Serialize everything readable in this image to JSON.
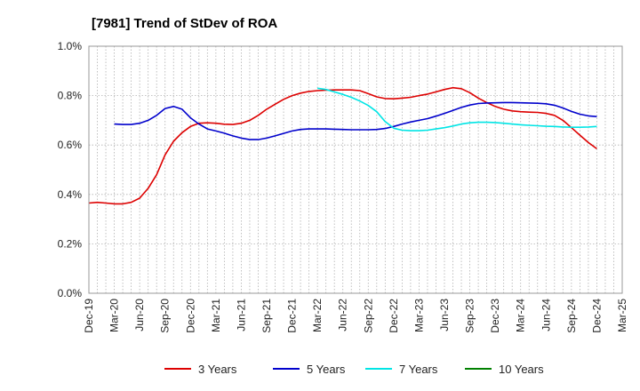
{
  "chart_data": {
    "type": "line",
    "title": "[7981]  Trend of StDev of ROA",
    "xlabel": "",
    "ylabel": "",
    "ylim": [
      0,
      1.0
    ],
    "y_ticks": [
      "0.0%",
      "0.2%",
      "0.4%",
      "0.6%",
      "0.8%",
      "1.0%"
    ],
    "x_ticks": [
      "Dec-19",
      "Mar-20",
      "Jun-20",
      "Sep-20",
      "Dec-20",
      "Mar-21",
      "Jun-21",
      "Sep-21",
      "Dec-21",
      "Mar-22",
      "Jun-22",
      "Sep-22",
      "Dec-22",
      "Mar-23",
      "Jun-23",
      "Sep-23",
      "Dec-23",
      "Mar-24",
      "Jun-24",
      "Sep-24",
      "Dec-24",
      "Mar-25"
    ],
    "grid": true,
    "legend_position": "bottom",
    "series": [
      {
        "name": "3 Years",
        "color": "#dd0000",
        "values": [
          0.365,
          0.368,
          0.365,
          0.362,
          0.362,
          0.368,
          0.385,
          0.425,
          0.48,
          0.56,
          0.615,
          0.65,
          0.675,
          0.688,
          0.69,
          0.688,
          0.684,
          0.683,
          0.688,
          0.7,
          0.72,
          0.745,
          0.765,
          0.785,
          0.8,
          0.81,
          0.817,
          0.82,
          0.822,
          0.823,
          0.823,
          0.823,
          0.82,
          0.808,
          0.795,
          0.788,
          0.787,
          0.79,
          0.793,
          0.8,
          0.806,
          0.815,
          0.825,
          0.832,
          0.828,
          0.812,
          0.79,
          0.772,
          0.756,
          0.745,
          0.738,
          0.735,
          0.733,
          0.732,
          0.728,
          0.72,
          0.7,
          0.67,
          0.64,
          0.61,
          0.585
        ]
      },
      {
        "name": "5 Years",
        "color": "#0000cc",
        "values": [
          null,
          null,
          null,
          0.685,
          0.683,
          0.683,
          0.688,
          0.7,
          0.72,
          0.748,
          0.756,
          0.745,
          0.71,
          0.685,
          0.665,
          0.657,
          0.648,
          0.637,
          0.628,
          0.622,
          0.622,
          0.628,
          0.637,
          0.647,
          0.657,
          0.663,
          0.665,
          0.665,
          0.665,
          0.664,
          0.663,
          0.662,
          0.662,
          0.662,
          0.663,
          0.667,
          0.675,
          0.685,
          0.693,
          0.7,
          0.707,
          0.717,
          0.728,
          0.74,
          0.752,
          0.762,
          0.768,
          0.77,
          0.771,
          0.772,
          0.772,
          0.771,
          0.77,
          0.769,
          0.767,
          0.761,
          0.75,
          0.736,
          0.725,
          0.718,
          0.715
        ]
      },
      {
        "name": "7 Years",
        "color": "#00e5e5",
        "values": [
          null,
          null,
          null,
          null,
          null,
          null,
          null,
          null,
          null,
          null,
          null,
          null,
          null,
          null,
          null,
          null,
          null,
          null,
          null,
          null,
          null,
          null,
          null,
          null,
          null,
          null,
          null,
          0.83,
          0.825,
          0.815,
          0.805,
          0.793,
          0.778,
          0.76,
          0.735,
          0.695,
          0.668,
          0.66,
          0.658,
          0.658,
          0.66,
          0.665,
          0.67,
          0.677,
          0.685,
          0.69,
          0.692,
          0.692,
          0.691,
          0.688,
          0.685,
          0.682,
          0.68,
          0.678,
          0.676,
          0.675,
          0.673,
          0.672,
          0.672,
          0.673,
          0.675
        ]
      },
      {
        "name": "10 Years",
        "color": "#008000",
        "values": []
      }
    ]
  }
}
